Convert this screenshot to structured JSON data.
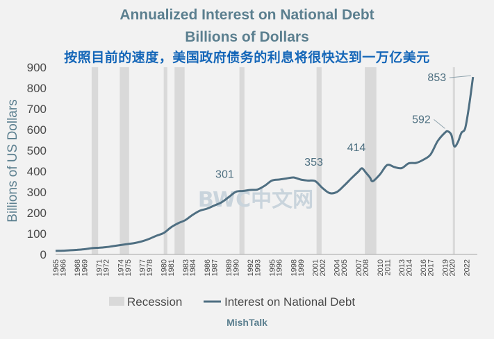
{
  "header": {
    "title_line1": "Annualized Interest on National Debt",
    "title_line2": "Billions of Dollars",
    "subtitle_cn": "按照目前的速度，美国政府债务的利息将很快达到一万亿美元"
  },
  "watermark": "BWC中文网",
  "source": "MishTalk",
  "colors": {
    "line": "#4f6f82",
    "recession": "#d9d9d9",
    "title": "#5b7f8f",
    "subtitle": "#1466b8",
    "background": "#f2f2f2"
  },
  "chart_data": {
    "type": "line",
    "title": "Annualized Interest on National Debt",
    "subtitle": "Billions of Dollars",
    "xlabel": "",
    "ylabel": "Billions of US Dollars",
    "xlim": [
      1965,
      2023.5
    ],
    "ylim": [
      0,
      900
    ],
    "y_ticks": [
      0,
      100,
      200,
      300,
      400,
      500,
      600,
      700,
      800,
      900
    ],
    "x_ticks": [
      1965,
      1966,
      1968,
      1969,
      1971,
      1972,
      1974,
      1975,
      1977,
      1978,
      1980,
      1981,
      1983,
      1984,
      1986,
      1987,
      1989,
      1990,
      1992,
      1993,
      1995,
      1996,
      1998,
      1999,
      2001,
      2002,
      2004,
      2005,
      2007,
      2008,
      2010,
      2011,
      2013,
      2014,
      2016,
      2017,
      2019,
      2020,
      2022
    ],
    "grid": false,
    "legend_position": "bottom",
    "legend": [
      {
        "label": "Recession",
        "kind": "box"
      },
      {
        "label": "Interest on National Debt",
        "kind": "line"
      }
    ],
    "recessions": [
      [
        1970.0,
        1970.9
      ],
      [
        1973.9,
        1975.2
      ],
      [
        1980.0,
        1980.5
      ],
      [
        1981.5,
        1982.9
      ],
      [
        1990.5,
        1991.2
      ],
      [
        2001.2,
        2001.9
      ],
      [
        2007.9,
        2009.5
      ],
      [
        2020.1,
        2020.4
      ]
    ],
    "series": [
      {
        "name": "Interest on National Debt",
        "x": [
          1965,
          1966,
          1967,
          1968,
          1969,
          1970,
          1971,
          1972,
          1973,
          1974,
          1975,
          1976,
          1977,
          1978,
          1979,
          1980,
          1981,
          1982,
          1983,
          1984,
          1985,
          1986,
          1987,
          1988,
          1989,
          1990,
          1991,
          1992,
          1993,
          1994,
          1995,
          1996,
          1997,
          1998,
          1999,
          2000,
          2001,
          2002,
          2003,
          2004,
          2005,
          2006,
          2007,
          2007.5,
          2008,
          2008.6,
          2009,
          2010,
          2011,
          2012,
          2013,
          2014,
          2015,
          2016,
          2017,
          2018,
          2019,
          2019.4,
          2019.9,
          2020.3,
          2020.8,
          2021.3,
          2021.8,
          2022.3,
          2022.9
        ],
        "values": [
          17,
          18,
          20,
          22,
          25,
          30,
          32,
          35,
          40,
          45,
          50,
          55,
          63,
          75,
          90,
          103,
          130,
          150,
          165,
          190,
          210,
          220,
          235,
          250,
          275,
          301,
          305,
          310,
          312,
          330,
          355,
          360,
          365,
          370,
          360,
          355,
          353,
          320,
          295,
          300,
          330,
          365,
          398,
          414,
          395,
          370,
          352,
          385,
          430,
          420,
          415,
          438,
          440,
          455,
          480,
          545,
          585,
          592,
          575,
          520,
          540,
          585,
          605,
          700,
          853
        ]
      }
    ],
    "annotations": [
      {
        "text": "301",
        "x": 1990,
        "y": 301
      },
      {
        "text": "353",
        "x": 2001,
        "y": 353
      },
      {
        "text": "414",
        "x": 2007.5,
        "y": 414
      },
      {
        "text": "592",
        "x": 2019.4,
        "y": 592
      },
      {
        "text": "853",
        "x": 2022.9,
        "y": 853
      }
    ]
  }
}
